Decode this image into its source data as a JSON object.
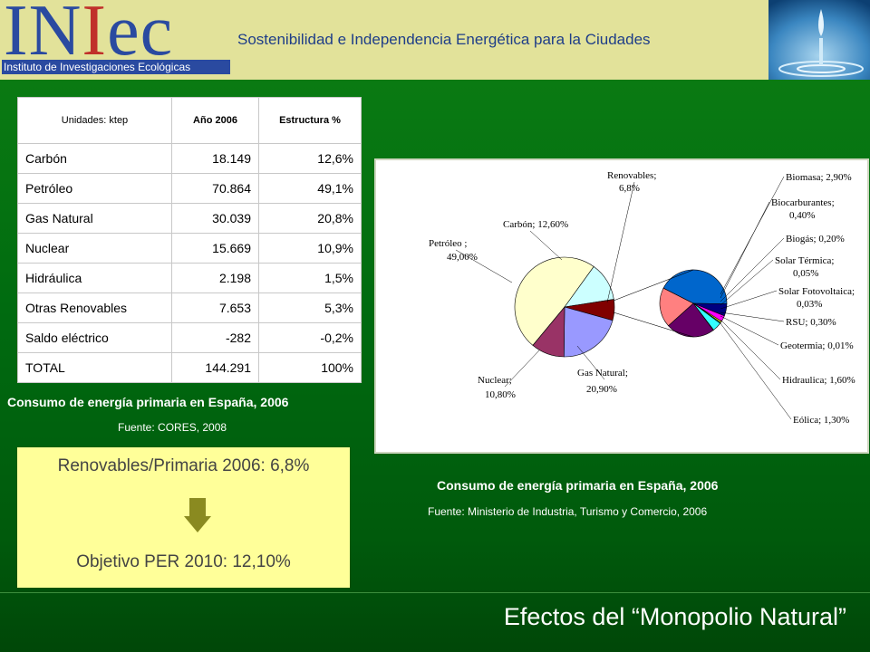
{
  "header": {
    "logo_text_1": "IN",
    "logo_text_2": "I",
    "logo_text_3": "ec",
    "logo_subtitle": "Instituto de Investigaciones Ecológicas",
    "title": "Sostenibilidad e Independencia Energética para la Ciudades"
  },
  "table": {
    "headers": [
      "Unidades: ktep",
      "Año 2006",
      "Estructura %"
    ],
    "rows": [
      {
        "label": "Carbón",
        "value": "18.149",
        "share": "12,6%"
      },
      {
        "label": "Petróleo",
        "value": "70.864",
        "share": "49,1%"
      },
      {
        "label": "Gas Natural",
        "value": "30.039",
        "share": "20,8%"
      },
      {
        "label": "Nuclear",
        "value": "15.669",
        "share": "10,9%"
      },
      {
        "label": "Hidráulica",
        "value": "2.198",
        "share": "1,5%"
      },
      {
        "label": "Otras Renovables",
        "value": "7.653",
        "share": "5,3%"
      },
      {
        "label": "Saldo eléctrico",
        "value": "-282",
        "share": "-0,2%"
      },
      {
        "label": "TOTAL",
        "value": "144.291",
        "share": "100%"
      }
    ],
    "caption": "Consumo de energía primaria en España, 2006",
    "source": "Fuente: CORES, 2008"
  },
  "target": {
    "line1": "Renovables/Primaria 2006: 6,8%",
    "line2": "Objetivo PER 2010: 12,10%",
    "arrow_color": "#8a8a20",
    "box_color": "#ffff99"
  },
  "chart_caption": "Consumo de energía primaria en España, 2006",
  "chart_source": "Fuente: Ministerio de Industria, Turismo y Comercio, 2006",
  "footer": {
    "title": "Efectos del “Monopolio Natural”"
  },
  "chart_data": {
    "type": "pie",
    "main": {
      "slices": [
        {
          "label": "Petróleo ;",
          "label2": "49,00%",
          "value": 49.0,
          "color": "#ffffcc"
        },
        {
          "label": "Carbón; 12,60%",
          "label2": "",
          "value": 12.6,
          "color": "#ccffff"
        },
        {
          "label": "Renovables;",
          "label2": "6,8%",
          "value": 6.8,
          "color": "#800000"
        },
        {
          "label": "Gas Natural;",
          "label2": "20,90%",
          "value": 20.9,
          "color": "#9999ff"
        },
        {
          "label": "Nuclear;",
          "label2": "10,80%",
          "value": 10.8,
          "color": "#993366"
        }
      ]
    },
    "renewables_breakdown": {
      "slices": [
        {
          "label": "Biomasa; 2,90%",
          "value": 2.9,
          "color": "#0066cc"
        },
        {
          "label": "Biocarburantes;",
          "label2": "0,40%",
          "value": 0.4,
          "color": "#000080"
        },
        {
          "label": "Biogás; 0,20%",
          "value": 0.2,
          "color": "#ff00ff"
        },
        {
          "label": "Solar Térmica;",
          "label2": "0,05%",
          "value": 0.05,
          "color": "#ffff00"
        },
        {
          "label": "Solar Fotovoltaica;",
          "label2": "0,03%",
          "value": 0.03,
          "color": "#00ffff"
        },
        {
          "label": "RSU; 0,30%",
          "value": 0.3,
          "color": "#33ffff"
        },
        {
          "label": "Geotermia; 0,01%",
          "value": 0.01,
          "color": "#800080"
        },
        {
          "label": "Hidraulica; 1,60%",
          "value": 1.6,
          "color": "#660066"
        },
        {
          "label": "Eólica; 1,30%",
          "value": 1.3,
          "color": "#ff8080"
        }
      ]
    }
  }
}
